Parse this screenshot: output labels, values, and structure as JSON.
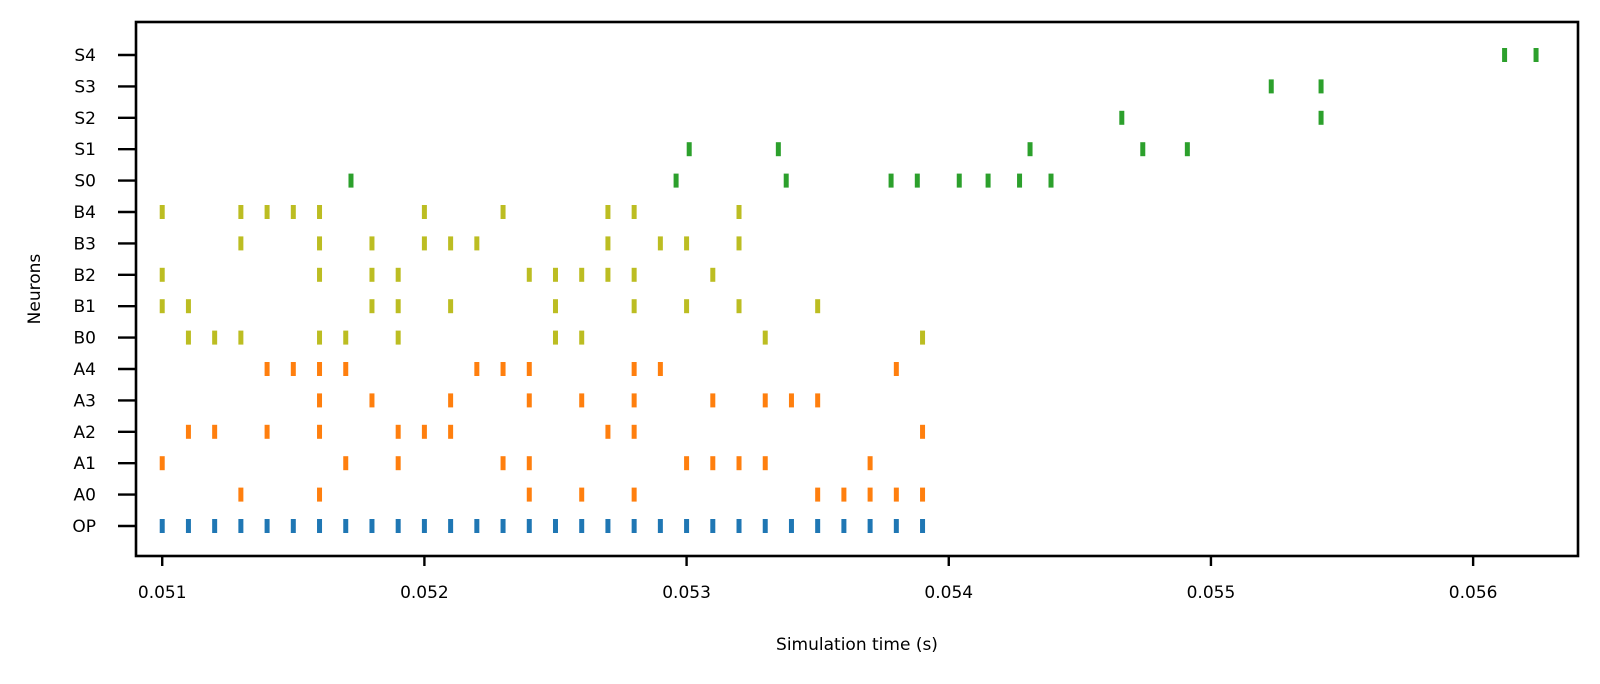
{
  "chart_data": {
    "type": "raster",
    "title": "",
    "xlabel": "Simulation time (s)",
    "ylabel": "Neurons",
    "xlim": [
      0.0509,
      0.0564
    ],
    "xticks": [
      0.051,
      0.052,
      0.053,
      0.054,
      0.055,
      0.056
    ],
    "xtick_labels": [
      "0.051",
      "0.052",
      "0.053",
      "0.054",
      "0.055",
      "0.056"
    ],
    "neurons": [
      "OP",
      "A0",
      "A1",
      "A2",
      "A3",
      "A4",
      "B0",
      "B1",
      "B2",
      "B3",
      "B4",
      "S0",
      "S1",
      "S2",
      "S3",
      "S4"
    ],
    "grid": false,
    "legend": "none",
    "group_colors": {
      "OP": "#1f77b4",
      "A": "#ff7f0e",
      "B": "#bcbd22",
      "S": "#2ca02c"
    },
    "spikes": {
      "OP": [
        0.051,
        0.0511,
        0.0512,
        0.0513,
        0.0514,
        0.0515,
        0.0516,
        0.0517,
        0.0518,
        0.0519,
        0.052,
        0.0521,
        0.0522,
        0.0523,
        0.0524,
        0.0525,
        0.0526,
        0.0527,
        0.0528,
        0.0529,
        0.053,
        0.0531,
        0.0532,
        0.0533,
        0.0534,
        0.0535,
        0.0536,
        0.0537,
        0.0538,
        0.0539
      ],
      "A0": [
        0.0513,
        0.0516,
        0.0524,
        0.0526,
        0.0528,
        0.0535,
        0.0536,
        0.0537,
        0.0538,
        0.0539
      ],
      "A1": [
        0.051,
        0.0517,
        0.0519,
        0.0523,
        0.0524,
        0.053,
        0.0531,
        0.0532,
        0.0533,
        0.0537
      ],
      "A2": [
        0.0511,
        0.0512,
        0.0514,
        0.0516,
        0.0519,
        0.052,
        0.0521,
        0.0527,
        0.0528,
        0.0539
      ],
      "A3": [
        0.0516,
        0.0518,
        0.0521,
        0.0524,
        0.0526,
        0.0528,
        0.0531,
        0.0533,
        0.0534,
        0.0535
      ],
      "A4": [
        0.0514,
        0.0515,
        0.0516,
        0.0517,
        0.0522,
        0.0523,
        0.0524,
        0.0528,
        0.0529,
        0.0538
      ],
      "B0": [
        0.0511,
        0.0512,
        0.0513,
        0.0516,
        0.0517,
        0.0519,
        0.0525,
        0.0526,
        0.0533,
        0.0539
      ],
      "B1": [
        0.051,
        0.0511,
        0.0518,
        0.0519,
        0.0521,
        0.0525,
        0.0528,
        0.053,
        0.0532,
        0.0535
      ],
      "B2": [
        0.051,
        0.0516,
        0.0518,
        0.0519,
        0.0524,
        0.0525,
        0.0526,
        0.0527,
        0.0528,
        0.0531
      ],
      "B3": [
        0.0513,
        0.0516,
        0.0518,
        0.052,
        0.0521,
        0.0522,
        0.0527,
        0.0529,
        0.053,
        0.0532
      ],
      "B4": [
        0.051,
        0.0513,
        0.0514,
        0.0515,
        0.0516,
        0.052,
        0.0523,
        0.0527,
        0.0528,
        0.0532
      ],
      "S0": [
        0.05172,
        0.05296,
        0.05338,
        0.05378,
        0.05388,
        0.05404,
        0.05415,
        0.05427,
        0.05439
      ],
      "S1": [
        0.05301,
        0.05335,
        0.05431,
        0.05474,
        0.05491
      ],
      "S2": [
        0.05466,
        0.05542
      ],
      "S3": [
        0.05523,
        0.05542
      ],
      "S4": [
        0.05612,
        0.05624
      ]
    }
  }
}
